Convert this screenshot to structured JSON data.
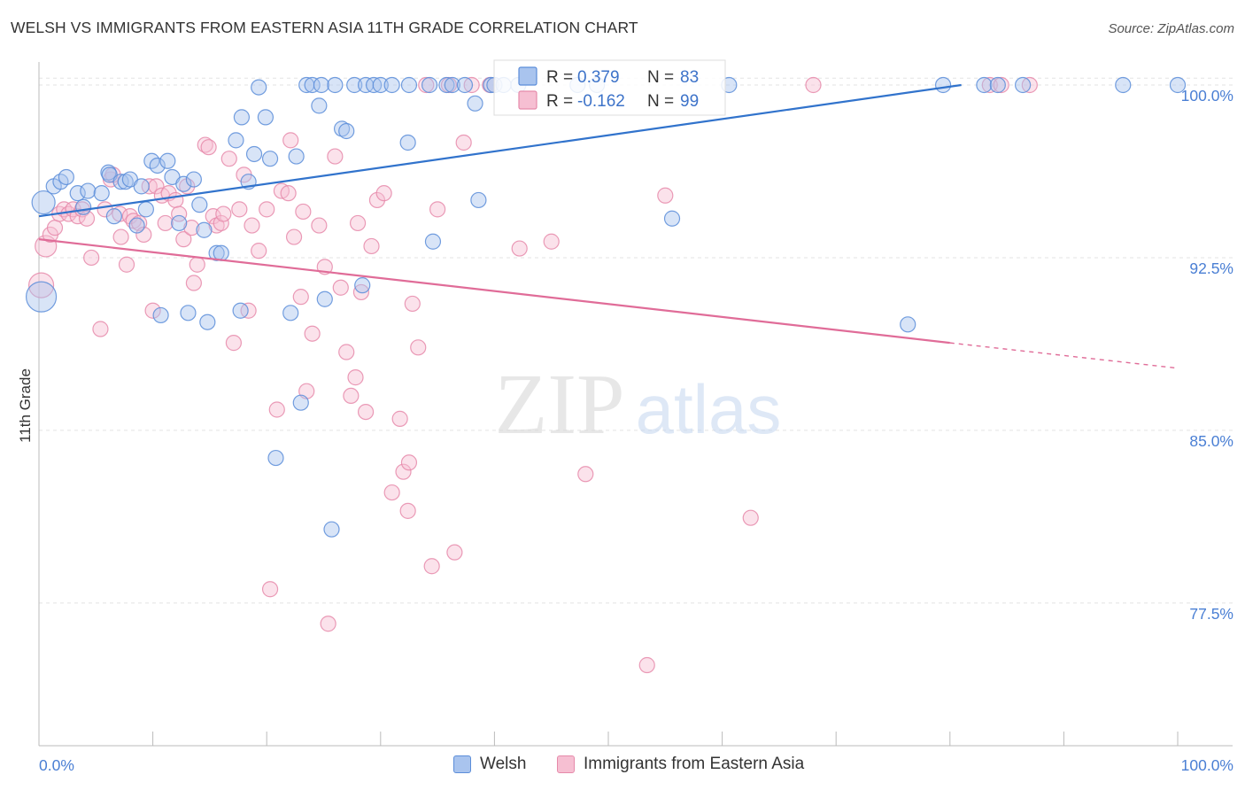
{
  "title": "WELSH VS IMMIGRANTS FROM EASTERN ASIA 11TH GRADE CORRELATION CHART",
  "source": "Source: ZipAtlas.com",
  "watermark": {
    "zip": "ZIP",
    "atlas": "atlas"
  },
  "colors": {
    "welsh_fill": "#a9c4ee",
    "welsh_stroke": "#5b8dd9",
    "welsh_line": "#3173cc",
    "asia_fill": "#f6bfd2",
    "asia_stroke": "#e68aaa",
    "asia_line": "#e06c98",
    "tick_label": "#4a7fd4",
    "grid": "#e3e3e3"
  },
  "legend_box": {
    "rows": [
      {
        "r_label": "R =",
        "r_value": "0.379",
        "n_label": "N =",
        "n_value": "83"
      },
      {
        "r_label": "R =",
        "r_value": "-0.162",
        "n_label": "N =",
        "n_value": "99"
      }
    ]
  },
  "bottom_legend": [
    "Welsh",
    "Immigrants from Eastern Asia"
  ],
  "chart_data": {
    "type": "scatter",
    "ylabel": "11th Grade",
    "xlim": [
      0,
      100
    ],
    "ylim": [
      71.3,
      101.0
    ],
    "x_tick_labels": [
      "0.0%",
      "100.0%"
    ],
    "y_ticks": [
      {
        "value": 100.0,
        "label": "100.0%"
      },
      {
        "value": 92.5,
        "label": "92.5%"
      },
      {
        "value": 85.0,
        "label": "85.0%"
      },
      {
        "value": 77.5,
        "label": "77.5%"
      }
    ],
    "grid": true,
    "series": [
      {
        "name": "Welsh",
        "r": 0.379,
        "n": 83,
        "trend": {
          "x1": 0,
          "y1": 94.3,
          "x2": 81.0,
          "y2": 100.0
        },
        "points": [
          [
            0.4,
            94.9
          ],
          [
            0.2,
            90.8
          ],
          [
            1.3,
            95.6
          ],
          [
            1.9,
            95.8
          ],
          [
            2.4,
            96.0
          ],
          [
            3.4,
            95.3
          ],
          [
            3.9,
            94.7
          ],
          [
            4.3,
            95.4
          ],
          [
            5.5,
            95.3
          ],
          [
            6.1,
            96.2
          ],
          [
            6.2,
            96.1
          ],
          [
            6.6,
            94.3
          ],
          [
            7.2,
            95.8
          ],
          [
            7.6,
            95.8
          ],
          [
            8.0,
            95.9
          ],
          [
            8.6,
            93.9
          ],
          [
            9.0,
            95.6
          ],
          [
            9.4,
            94.6
          ],
          [
            9.9,
            96.7
          ],
          [
            10.4,
            96.5
          ],
          [
            10.7,
            90.0
          ],
          [
            11.3,
            96.7
          ],
          [
            11.7,
            96.0
          ],
          [
            12.3,
            94.0
          ],
          [
            12.7,
            95.7
          ],
          [
            13.1,
            90.1
          ],
          [
            13.6,
            95.9
          ],
          [
            14.1,
            94.8
          ],
          [
            14.5,
            93.7
          ],
          [
            14.8,
            89.7
          ],
          [
            15.6,
            92.7
          ],
          [
            16.0,
            92.7
          ],
          [
            17.3,
            97.6
          ],
          [
            17.7,
            90.2
          ],
          [
            17.8,
            98.6
          ],
          [
            18.4,
            95.8
          ],
          [
            18.9,
            97.0
          ],
          [
            19.3,
            99.9
          ],
          [
            19.9,
            98.6
          ],
          [
            20.3,
            96.8
          ],
          [
            20.8,
            83.8
          ],
          [
            22.1,
            90.1
          ],
          [
            22.6,
            96.9
          ],
          [
            23.0,
            86.2
          ],
          [
            23.5,
            100.0
          ],
          [
            24.0,
            100.0
          ],
          [
            24.6,
            99.1
          ],
          [
            24.8,
            100.0
          ],
          [
            25.1,
            90.7
          ],
          [
            25.7,
            80.7
          ],
          [
            26.0,
            100.0
          ],
          [
            26.6,
            98.1
          ],
          [
            27.0,
            98.0
          ],
          [
            27.7,
            100.0
          ],
          [
            28.4,
            91.3
          ],
          [
            28.7,
            100.0
          ],
          [
            29.4,
            100.0
          ],
          [
            30.0,
            100.0
          ],
          [
            31.0,
            100.0
          ],
          [
            32.4,
            97.5
          ],
          [
            32.5,
            100.0
          ],
          [
            34.3,
            100.0
          ],
          [
            34.6,
            93.2
          ],
          [
            35.8,
            100.0
          ],
          [
            36.3,
            100.0
          ],
          [
            37.4,
            100.0
          ],
          [
            38.3,
            99.2
          ],
          [
            38.6,
            95.0
          ],
          [
            39.7,
            100.0
          ],
          [
            40.0,
            100.0
          ],
          [
            40.8,
            100.0
          ],
          [
            42.1,
            100.0
          ],
          [
            47.3,
            100.0
          ],
          [
            49.0,
            100.0
          ],
          [
            55.6,
            94.2
          ],
          [
            60.6,
            100.0
          ],
          [
            76.3,
            89.6
          ],
          [
            79.4,
            100.0
          ],
          [
            83.0,
            100.0
          ],
          [
            84.2,
            100.0
          ],
          [
            86.4,
            100.0
          ],
          [
            95.2,
            100.0
          ],
          [
            100.0,
            100.0
          ]
        ]
      },
      {
        "name": "Immigrants from Eastern Asia",
        "r": -0.162,
        "n": 99,
        "trend": {
          "x1": 0,
          "y1": 93.3,
          "x2": 80.0,
          "y2": 88.8
        },
        "trend_dashed": {
          "x1": 80.0,
          "y1": 88.8,
          "x2": 100.0,
          "y2": 87.7
        },
        "points": [
          [
            0.2,
            91.3
          ],
          [
            0.6,
            93.0
          ],
          [
            1.0,
            93.5
          ],
          [
            1.4,
            93.8
          ],
          [
            1.8,
            94.4
          ],
          [
            2.2,
            94.6
          ],
          [
            2.6,
            94.4
          ],
          [
            3.0,
            94.6
          ],
          [
            3.4,
            94.3
          ],
          [
            3.8,
            94.6
          ],
          [
            4.2,
            94.2
          ],
          [
            4.6,
            92.5
          ],
          [
            5.4,
            89.4
          ],
          [
            5.8,
            94.6
          ],
          [
            6.3,
            95.9
          ],
          [
            6.5,
            96.1
          ],
          [
            7.1,
            94.4
          ],
          [
            7.2,
            93.4
          ],
          [
            7.7,
            92.2
          ],
          [
            8.0,
            94.3
          ],
          [
            8.3,
            94.1
          ],
          [
            8.8,
            94.0
          ],
          [
            9.2,
            93.5
          ],
          [
            9.7,
            95.6
          ],
          [
            10.0,
            90.2
          ],
          [
            10.3,
            95.6
          ],
          [
            10.8,
            95.2
          ],
          [
            11.1,
            94.0
          ],
          [
            11.4,
            95.3
          ],
          [
            12.0,
            95.0
          ],
          [
            12.3,
            94.4
          ],
          [
            12.7,
            93.3
          ],
          [
            13.0,
            95.6
          ],
          [
            13.4,
            93.8
          ],
          [
            13.6,
            91.4
          ],
          [
            13.9,
            92.2
          ],
          [
            14.6,
            97.4
          ],
          [
            14.9,
            97.3
          ],
          [
            15.3,
            94.3
          ],
          [
            15.6,
            93.9
          ],
          [
            16.0,
            94.0
          ],
          [
            16.2,
            94.4
          ],
          [
            16.7,
            96.8
          ],
          [
            17.1,
            88.8
          ],
          [
            17.6,
            94.6
          ],
          [
            18.0,
            96.1
          ],
          [
            18.4,
            90.2
          ],
          [
            18.7,
            93.9
          ],
          [
            19.3,
            92.8
          ],
          [
            20.0,
            94.6
          ],
          [
            20.3,
            78.1
          ],
          [
            20.9,
            85.9
          ],
          [
            21.3,
            95.4
          ],
          [
            21.9,
            95.3
          ],
          [
            22.1,
            97.6
          ],
          [
            22.4,
            93.4
          ],
          [
            23.0,
            90.8
          ],
          [
            23.2,
            94.5
          ],
          [
            23.5,
            86.7
          ],
          [
            24.0,
            89.2
          ],
          [
            24.6,
            93.9
          ],
          [
            25.1,
            92.1
          ],
          [
            25.4,
            76.6
          ],
          [
            26.0,
            96.9
          ],
          [
            26.5,
            91.2
          ],
          [
            27.0,
            88.4
          ],
          [
            27.4,
            86.5
          ],
          [
            27.8,
            87.3
          ],
          [
            28.0,
            94.0
          ],
          [
            28.3,
            91.0
          ],
          [
            28.7,
            85.8
          ],
          [
            29.2,
            93.0
          ],
          [
            29.7,
            95.0
          ],
          [
            30.3,
            95.3
          ],
          [
            31.0,
            82.3
          ],
          [
            31.7,
            85.5
          ],
          [
            32.0,
            83.2
          ],
          [
            32.4,
            81.5
          ],
          [
            32.5,
            83.6
          ],
          [
            32.8,
            90.5
          ],
          [
            33.3,
            88.6
          ],
          [
            34.0,
            100.0
          ],
          [
            34.5,
            79.1
          ],
          [
            35.0,
            94.6
          ],
          [
            36.0,
            100.0
          ],
          [
            36.5,
            79.7
          ],
          [
            37.3,
            97.5
          ],
          [
            38.0,
            100.0
          ],
          [
            39.6,
            100.0
          ],
          [
            42.2,
            92.9
          ],
          [
            45.0,
            93.2
          ],
          [
            48.0,
            83.1
          ],
          [
            53.4,
            74.8
          ],
          [
            55.0,
            95.2
          ],
          [
            62.5,
            81.2
          ],
          [
            68.0,
            100.0
          ],
          [
            83.5,
            100.0
          ],
          [
            84.5,
            100.0
          ],
          [
            87.0,
            100.0
          ]
        ]
      }
    ]
  }
}
